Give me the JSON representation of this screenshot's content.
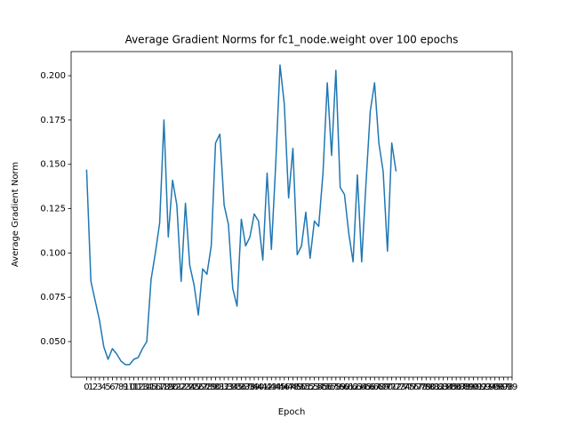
{
  "chart_data": {
    "type": "line",
    "title": "Average Gradient Norms for fc1_node.weight over 100 epochs",
    "x_label": "Epoch",
    "y_label": "Average Gradient Norm",
    "x": [
      0,
      1,
      2,
      3,
      4,
      5,
      6,
      7,
      8,
      9,
      10,
      11,
      12,
      13,
      14,
      15,
      16,
      17,
      18,
      19,
      20,
      21,
      22,
      23,
      24,
      25,
      26,
      27,
      28,
      29,
      30,
      31,
      32,
      33,
      34,
      35,
      36,
      37,
      38,
      39,
      40,
      41,
      42,
      43,
      44,
      45,
      46,
      47,
      48,
      49,
      50,
      51,
      52,
      53,
      54,
      55,
      56,
      57,
      58,
      59,
      60,
      61,
      62,
      63,
      64,
      65,
      66,
      67,
      68,
      69,
      70,
      71,
      72
    ],
    "series": [
      {
        "name": "fc1_node.weight",
        "color": "#1f77b4",
        "values": [
          0.147,
          0.084,
          0.073,
          0.062,
          0.047,
          0.04,
          0.046,
          0.043,
          0.039,
          0.037,
          0.037,
          0.04,
          0.041,
          0.046,
          0.05,
          0.085,
          0.1,
          0.117,
          0.175,
          0.109,
          0.141,
          0.127,
          0.084,
          0.128,
          0.093,
          0.082,
          0.065,
          0.091,
          0.088,
          0.104,
          0.162,
          0.167,
          0.127,
          0.116,
          0.08,
          0.07,
          0.119,
          0.104,
          0.109,
          0.122,
          0.118,
          0.096,
          0.145,
          0.102,
          0.15,
          0.206,
          0.184,
          0.131,
          0.159,
          0.099,
          0.104,
          0.123,
          0.097,
          0.118,
          0.115,
          0.145,
          0.196,
          0.155,
          0.203,
          0.137,
          0.133,
          0.111,
          0.095,
          0.144,
          0.095,
          0.139,
          0.18,
          0.196,
          0.162,
          0.146,
          0.101,
          0.162,
          0.146
        ]
      }
    ],
    "xlim": [
      -3.6,
      99
    ],
    "xticks": [
      0,
      1,
      2,
      3,
      4,
      5,
      6,
      7,
      8,
      9,
      10,
      11,
      12,
      13,
      14,
      15,
      16,
      17,
      18,
      19,
      20,
      21,
      22,
      23,
      24,
      25,
      26,
      27,
      28,
      29,
      30,
      31,
      32,
      33,
      34,
      35,
      36,
      37,
      38,
      39,
      40,
      41,
      42,
      43,
      44,
      45,
      46,
      47,
      48,
      49,
      50,
      51,
      52,
      53,
      54,
      55,
      56,
      57,
      58,
      59,
      60,
      61,
      62,
      63,
      64,
      65,
      66,
      67,
      68,
      69,
      70,
      71,
      72,
      73,
      74,
      75,
      76,
      77,
      78,
      79,
      80,
      81,
      82,
      83,
      84,
      85,
      86,
      87,
      88,
      89,
      90,
      91,
      92,
      93,
      94,
      95,
      96,
      97,
      98,
      99
    ],
    "ylim": [
      0.0299,
      0.2136
    ],
    "yticks": [
      {
        "value": 0.05,
        "label": "0.050"
      },
      {
        "value": 0.075,
        "label": "0.075"
      },
      {
        "value": 0.1,
        "label": "0.100"
      },
      {
        "value": 0.125,
        "label": "0.125"
      },
      {
        "value": 0.15,
        "label": "0.150"
      },
      {
        "value": 0.175,
        "label": "0.175"
      },
      {
        "value": 0.2,
        "label": "0.200"
      }
    ],
    "grid": false
  }
}
